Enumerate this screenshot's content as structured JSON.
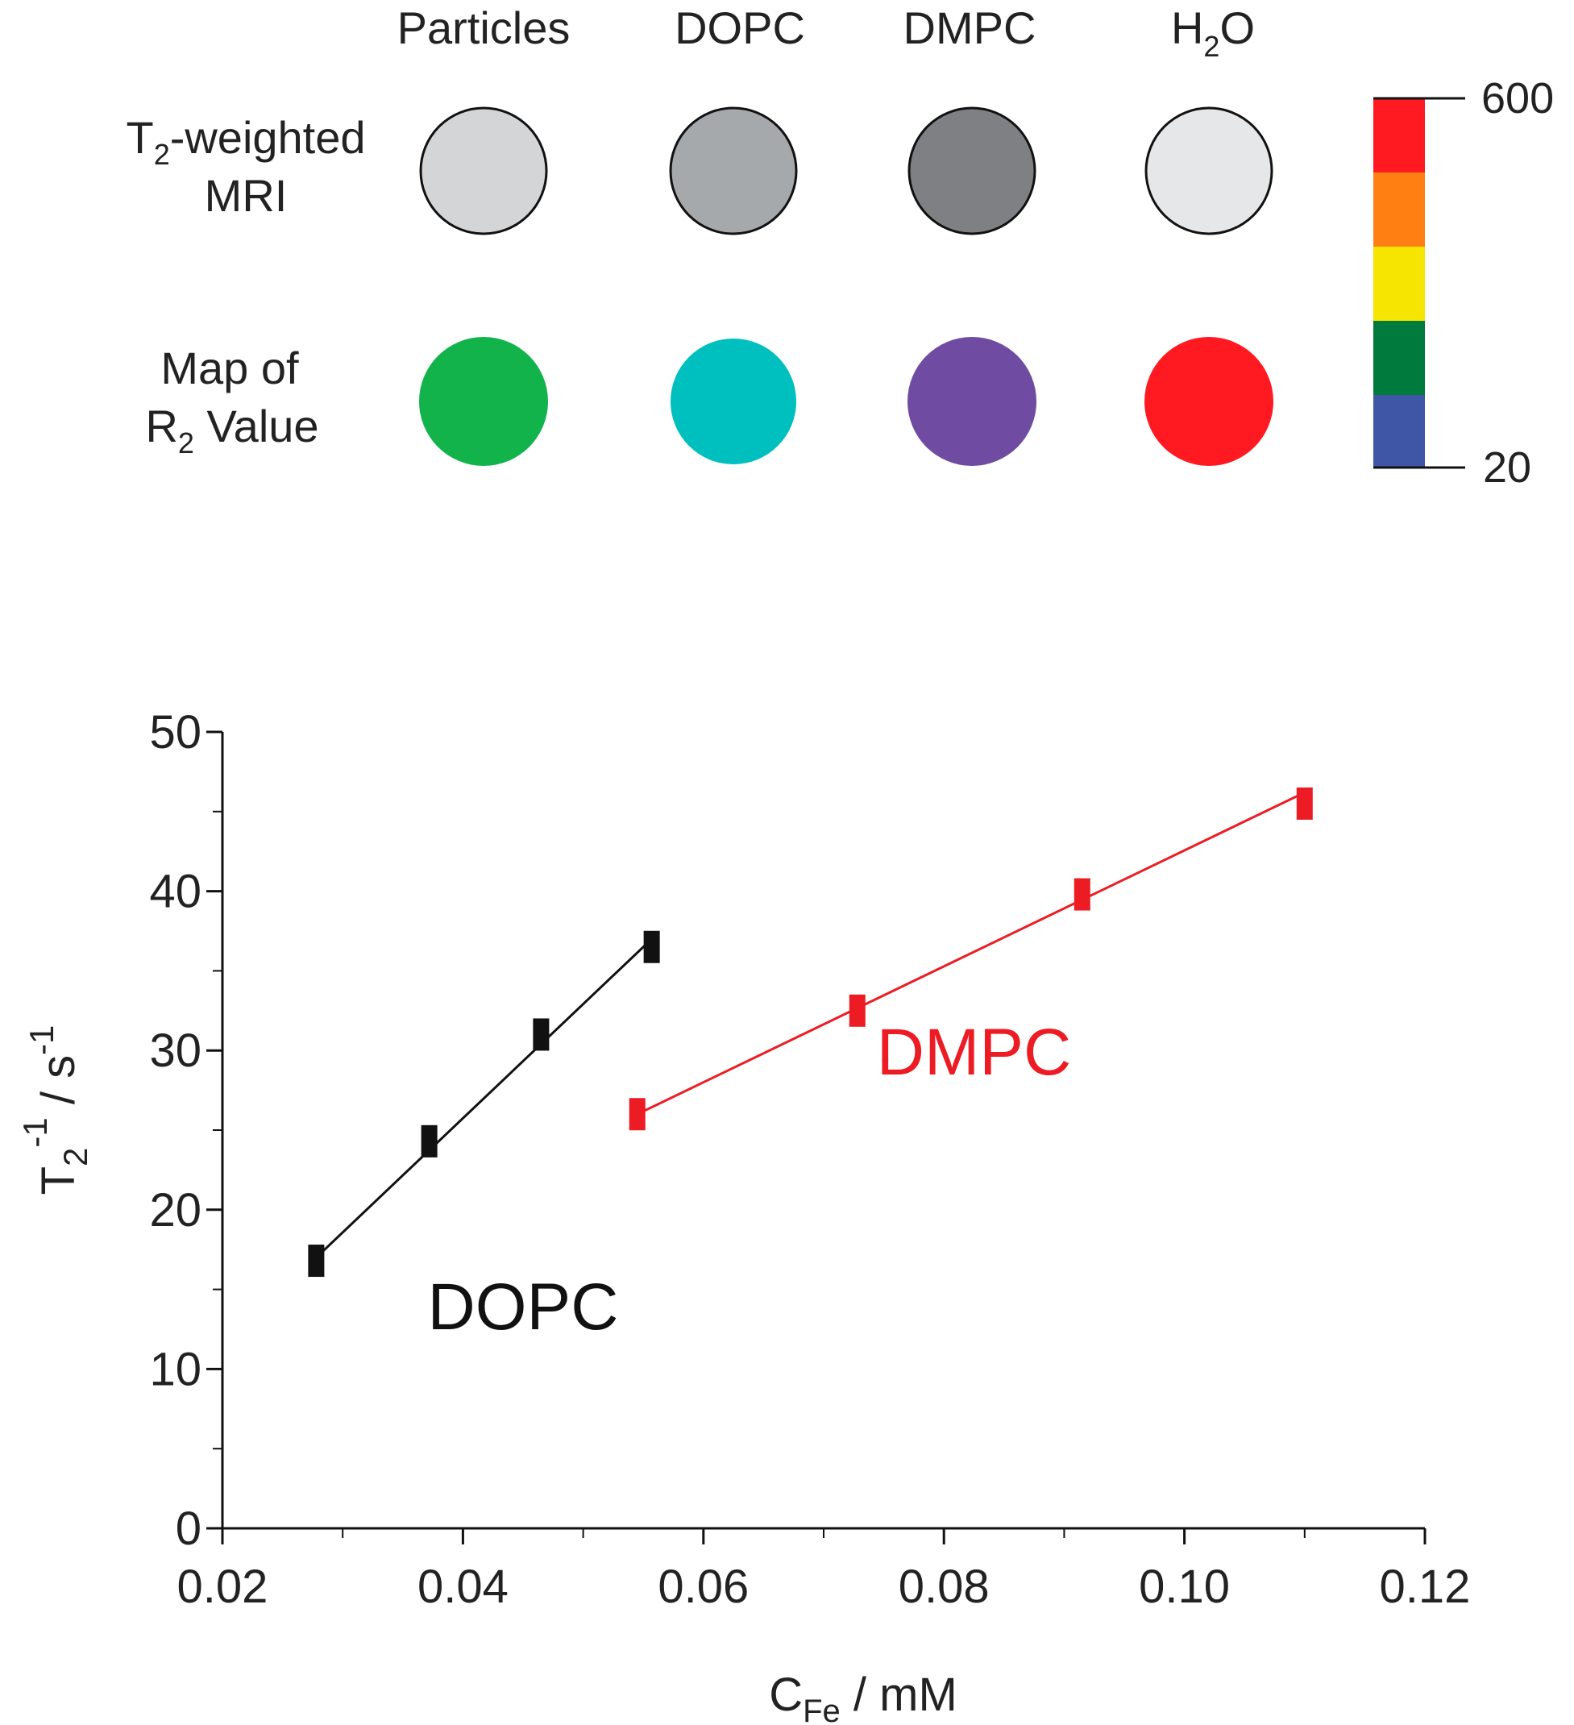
{
  "panel_top": {
    "columns": [
      "Particles",
      "DOPC",
      "DMPC",
      "H",
      "2",
      "O"
    ],
    "row_labels": {
      "mri": [
        "T",
        "2",
        "-weighted",
        "MRI"
      ],
      "r2": [
        "Map of",
        "R",
        "2",
        " Value"
      ]
    },
    "mri_fills": [
      "#d4d5d7",
      "#a6a9ac",
      "#7e8083",
      "#e6e7e8"
    ],
    "r2_fills": [
      "#13b34b",
      "#00bfbf",
      "#6f4ba1",
      "#ff1a22"
    ],
    "colorbar": {
      "max_label": "600",
      "min_label": "20",
      "colors": [
        "#ff1a22",
        "#ff7f13",
        "#f5e500",
        "#007a3d",
        "#3f56a6"
      ]
    }
  },
  "chart_data": {
    "type": "scatter",
    "title": "",
    "xlabel": "C",
    "xlabel_sub": "Fe",
    "xlabel_unit": "  /  mM",
    "ylabel_parts": [
      "T",
      "2",
      "-1",
      "  /  s",
      "-1"
    ],
    "xlim": [
      0.02,
      0.12
    ],
    "ylim": [
      0,
      50
    ],
    "x_ticks": [
      0.02,
      0.04,
      0.06,
      0.08,
      0.1,
      0.12
    ],
    "x_tick_labels": [
      "0.02",
      "0.04",
      "0.06",
      "0.08",
      "0.10",
      "0.12"
    ],
    "y_ticks": [
      0,
      10,
      20,
      30,
      40,
      50
    ],
    "y_tick_labels": [
      "0",
      "10",
      "20",
      "30",
      "40",
      "50"
    ],
    "series": [
      {
        "name": "DOPC",
        "color": "#111111",
        "x": [
          0.0278,
          0.0372,
          0.0465,
          0.0557
        ],
        "y": [
          16.8,
          24.3,
          31.0,
          36.5
        ],
        "fit": {
          "x": [
            0.0278,
            0.0557
          ],
          "y": [
            17.0,
            37.0
          ]
        }
      },
      {
        "name": "DMPC",
        "color": "#ed1c24",
        "x": [
          0.0545,
          0.0728,
          0.0915,
          0.11
        ],
        "y": [
          26.0,
          32.5,
          39.8,
          45.5
        ],
        "fit": {
          "x": [
            0.0545,
            0.11
          ],
          "y": [
            26.0,
            46.2
          ]
        }
      }
    ],
    "annotations": [
      {
        "text": "DOPC",
        "x": 0.045,
        "y": 12.5,
        "color": "#111111"
      },
      {
        "text": "DMPC",
        "x": 0.0825,
        "y": 28.5,
        "color": "#ed1c24"
      }
    ]
  }
}
